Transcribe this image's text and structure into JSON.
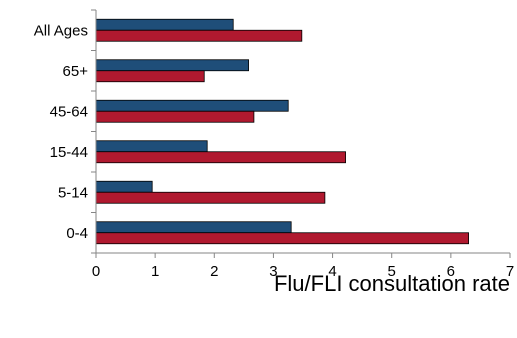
{
  "chart_data": {
    "type": "bar",
    "orientation": "horizontal",
    "title": "",
    "xlabel": "Flu/FLI consultation rate",
    "ylabel": "",
    "xlim": [
      0,
      7
    ],
    "xticks": [
      "0",
      "1",
      "2",
      "3",
      "4",
      "5",
      "6",
      "7"
    ],
    "categories": [
      "All Ages",
      "65+",
      "45-64",
      "15-44",
      "5-14",
      "0-4"
    ],
    "series": [
      {
        "color": "#1f4e79",
        "values": [
          2.32,
          2.58,
          3.25,
          1.88,
          0.95,
          3.3
        ]
      },
      {
        "color": "#b0192f",
        "values": [
          3.48,
          1.83,
          2.67,
          4.22,
          3.87,
          6.3
        ]
      }
    ],
    "grid": false,
    "legend": "none"
  }
}
